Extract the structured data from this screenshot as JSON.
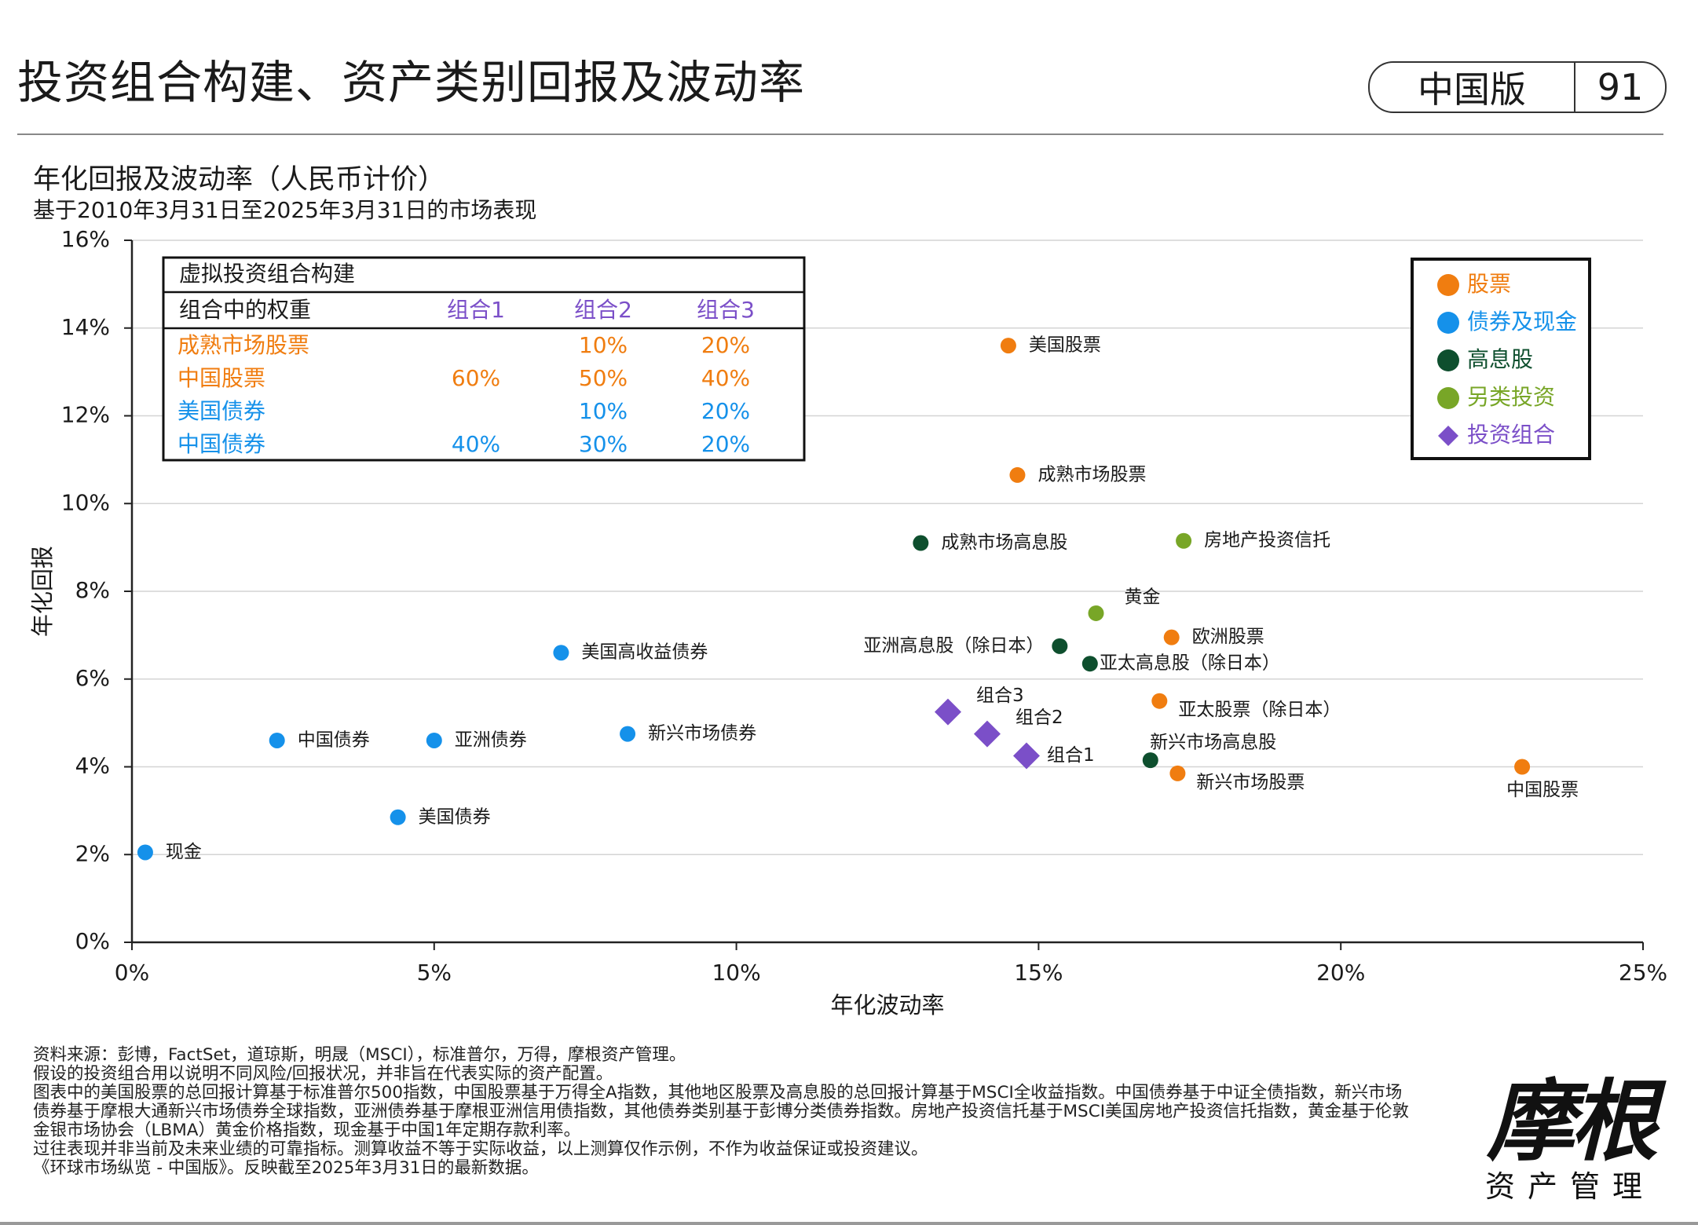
{
  "header": {
    "title": "投资组合构建、资产类别回报及波动率",
    "edition": "中国版",
    "page_number": "91"
  },
  "chart_title": "年化回报及波动率（人民币计价）",
  "chart_subtitle": "基于2010年3月31日至2025年3月31日的市场表现",
  "colors": {
    "equity": "#F07D10",
    "bonds": "#1591EA",
    "dividend": "#0E4F2E",
    "alternative": "#78A627",
    "portfolio": "#7B4FC8"
  },
  "chart_data": {
    "type": "scatter",
    "xlabel": "年化波动率",
    "ylabel": "年化回报",
    "xlim": [
      0,
      25
    ],
    "ylim": [
      0,
      16
    ],
    "x_ticks": [
      "0%",
      "5%",
      "10%",
      "15%",
      "20%",
      "25%"
    ],
    "y_ticks": [
      "0%",
      "2%",
      "4%",
      "6%",
      "8%",
      "10%",
      "12%",
      "14%",
      "16%"
    ],
    "grid": "horizontal",
    "legend_placement": "top-right",
    "legend": [
      {
        "label": "股票",
        "group": "equity",
        "shape": "circle"
      },
      {
        "label": "债券及现金",
        "group": "bonds",
        "shape": "circle"
      },
      {
        "label": "高息股",
        "group": "dividend",
        "shape": "circle"
      },
      {
        "label": "另类投资",
        "group": "alternative",
        "shape": "circle"
      },
      {
        "label": "投资组合",
        "group": "portfolio",
        "shape": "diamond"
      }
    ],
    "points": [
      {
        "label": "美国股票",
        "x": 14.5,
        "y": 13.6,
        "group": "equity",
        "pos": "right"
      },
      {
        "label": "成熟市场股票",
        "x": 14.65,
        "y": 10.65,
        "group": "equity",
        "pos": "right"
      },
      {
        "label": "欧洲股票",
        "x": 17.2,
        "y": 6.95,
        "group": "equity",
        "pos": "right"
      },
      {
        "label": "亚太股票（除日本）",
        "x": 17.0,
        "y": 5.5,
        "group": "equity",
        "pos": "right-below"
      },
      {
        "label": "新兴市场股票",
        "x": 17.3,
        "y": 3.85,
        "group": "equity",
        "pos": "right-below"
      },
      {
        "label": "中国股票",
        "x": 23.0,
        "y": 4.0,
        "group": "equity",
        "pos": "below"
      },
      {
        "label": "现金",
        "x": 0.22,
        "y": 2.05,
        "group": "bonds",
        "pos": "right"
      },
      {
        "label": "中国债券",
        "x": 2.4,
        "y": 4.6,
        "group": "bonds",
        "pos": "right"
      },
      {
        "label": "亚洲债券",
        "x": 5.0,
        "y": 4.6,
        "group": "bonds",
        "pos": "right"
      },
      {
        "label": "美国债券",
        "x": 4.4,
        "y": 2.85,
        "group": "bonds",
        "pos": "right"
      },
      {
        "label": "美国高收益债券",
        "x": 7.1,
        "y": 6.6,
        "group": "bonds",
        "pos": "right"
      },
      {
        "label": "新兴市场债券",
        "x": 8.2,
        "y": 4.75,
        "group": "bonds",
        "pos": "right"
      },
      {
        "label": "成熟市场高息股",
        "x": 13.05,
        "y": 9.1,
        "group": "dividend",
        "pos": "right"
      },
      {
        "label": "亚洲高息股（除日本）",
        "x": 15.35,
        "y": 6.75,
        "group": "dividend",
        "pos": "left"
      },
      {
        "label": "亚太高息股（除日本）",
        "x": 15.85,
        "y": 6.35,
        "group": "dividend",
        "pos": "right-tight"
      },
      {
        "label": "新兴市场高息股",
        "x": 16.85,
        "y": 4.15,
        "group": "dividend",
        "pos": "above"
      },
      {
        "label": "房地产投资信托",
        "x": 17.4,
        "y": 9.15,
        "group": "alternative",
        "pos": "right"
      },
      {
        "label": "黄金",
        "x": 15.95,
        "y": 7.5,
        "group": "alternative",
        "pos": "above-right"
      },
      {
        "label": "组合1",
        "x": 14.8,
        "y": 4.25,
        "group": "portfolio",
        "pos": "right"
      },
      {
        "label": "组合2",
        "x": 14.15,
        "y": 4.75,
        "group": "portfolio",
        "pos": "above-right"
      },
      {
        "label": "组合3",
        "x": 13.5,
        "y": 5.25,
        "group": "portfolio",
        "pos": "above-right"
      }
    ],
    "portfolio_table": {
      "title": "虚拟投资组合构建",
      "columns": [
        "组合中的权重",
        "组合1",
        "组合2",
        "组合3"
      ],
      "rows": [
        {
          "asset": "成熟市场股票",
          "group": "equity",
          "values": [
            "",
            "10%",
            "20%"
          ]
        },
        {
          "asset": "中国股票",
          "group": "equity",
          "values": [
            "60%",
            "50%",
            "40%"
          ]
        },
        {
          "asset": "美国债券",
          "group": "bonds",
          "values": [
            "",
            "10%",
            "20%"
          ]
        },
        {
          "asset": "中国债券",
          "group": "bonds",
          "values": [
            "40%",
            "30%",
            "20%"
          ]
        }
      ]
    }
  },
  "footnotes": [
    "资料来源：彭博，FactSet，道琼斯，明晟（MSCI），标准普尔，万得，摩根资产管理。",
    "假设的投资组合用以说明不同风险/回报状况，并非旨在代表实际的资产配置。",
    "图表中的美国股票的总回报计算基于标准普尔500指数，中国股票基于万得全A指数，其他地区股票及高息股的总回报计算基于MSCI全收益指数。中国债券基于中证全债指数，新兴市场",
    "债券基于摩根大通新兴市场债券全球指数，亚洲债券基于摩根亚洲信用债指数，其他债券类别基于彭博分类债券指数。房地产投资信托基于MSCI美国房地产投资信托指数，黄金基于伦敦",
    "金银市场协会（LBMA）黄金价格指数，现金基于中国1年定期存款利率。",
    "过往表现并非当前及未来业绩的可靠指标。测算收益不等于实际收益，以上测算仅作示例，不作为收益保证或投资建议。",
    "《环球市场纵览 - 中国版》。反映截至2025年3月31日的最新数据。"
  ],
  "logo": {
    "name": "摩根",
    "subtitle": "资产管理"
  }
}
